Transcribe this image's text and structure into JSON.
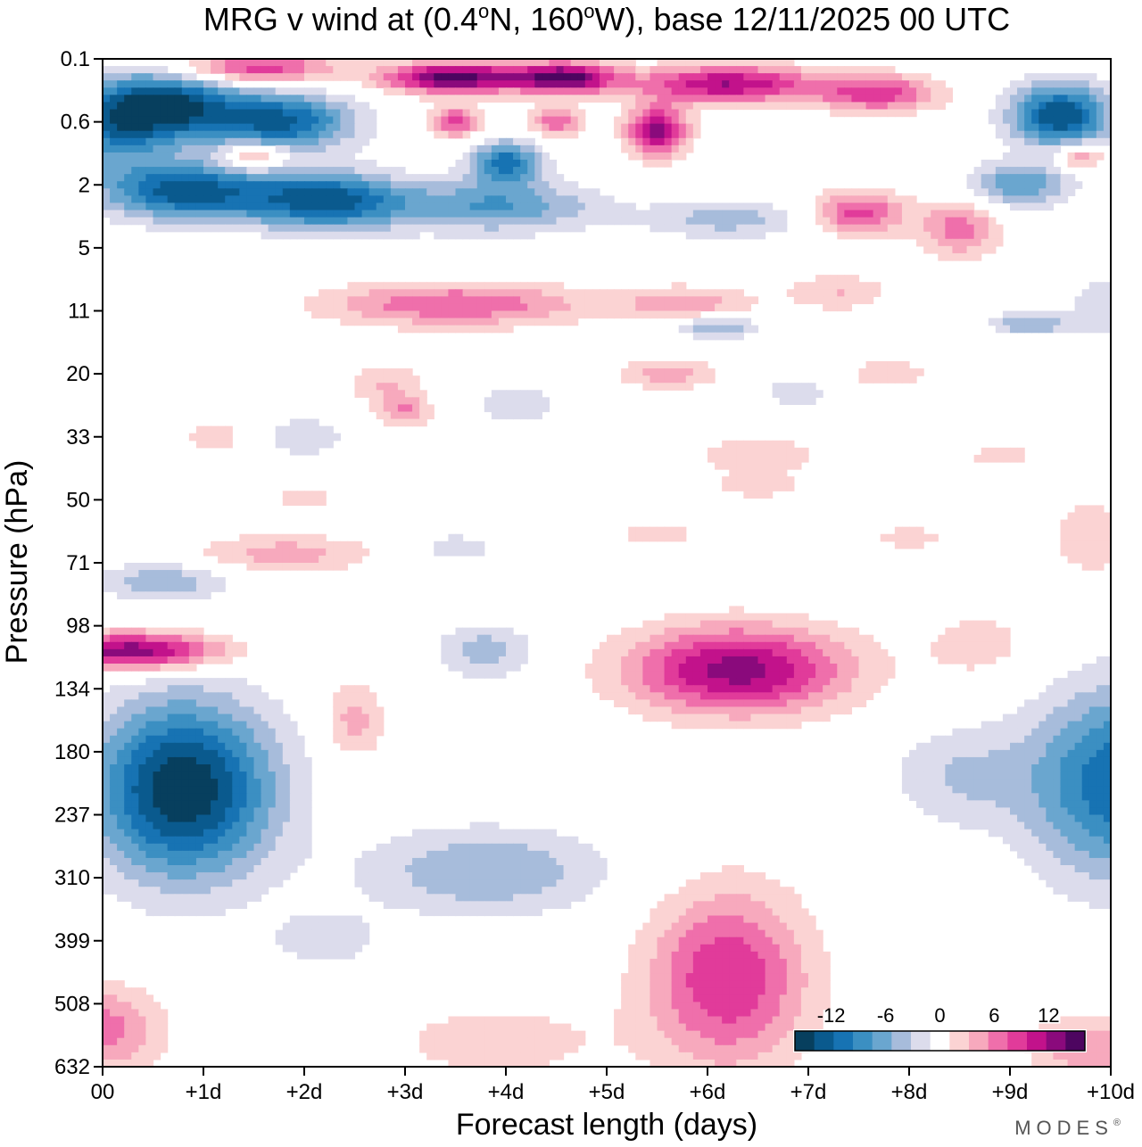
{
  "chart_data": {
    "type": "heatmap",
    "title": "MRG v wind at (0.4°N, 160°W),  base 12/11/2025  00 UTC",
    "title_parts": {
      "prefix": "MRG v wind at (0.4",
      "deg1": "o",
      "lat": "N, 160",
      "deg2": "o",
      "lon": "W),  base 12/11/2025  00 UTC"
    },
    "xlabel": "Forecast length (days)",
    "ylabel": "Pressure (hPa)",
    "xlim": [
      0,
      10
    ],
    "x_ticks": [
      {
        "v": 0,
        "label": "00"
      },
      {
        "v": 1,
        "label": "+1d"
      },
      {
        "v": 2,
        "label": "+2d"
      },
      {
        "v": 3,
        "label": "+3d"
      },
      {
        "v": 4,
        "label": "+4d"
      },
      {
        "v": 5,
        "label": "+5d"
      },
      {
        "v": 6,
        "label": "+6d"
      },
      {
        "v": 7,
        "label": "+7d"
      },
      {
        "v": 8,
        "label": "+8d"
      },
      {
        "v": 9,
        "label": "+9d"
      },
      {
        "v": 10,
        "label": "+10d"
      }
    ],
    "y_ticks": [
      "0.1",
      "0.6",
      "2",
      "5",
      "11",
      "20",
      "33",
      "50",
      "71",
      "98",
      "134",
      "180",
      "237",
      "310",
      "399",
      "508",
      "632"
    ],
    "colorbar": {
      "labels": [
        {
          "v": -12,
          "label": "-12"
        },
        {
          "v": -6,
          "label": "-6"
        },
        {
          "v": 0,
          "label": "0"
        },
        {
          "v": 6,
          "label": "6"
        },
        {
          "v": 12,
          "label": "12"
        }
      ],
      "bins": [
        {
          "lo": -16,
          "hi": -14,
          "color": "#073f5e"
        },
        {
          "lo": -14,
          "hi": -12,
          "color": "#0a5a8e"
        },
        {
          "lo": -12,
          "hi": -10,
          "color": "#1773b3"
        },
        {
          "lo": -10,
          "hi": -8,
          "color": "#3b8fc2"
        },
        {
          "lo": -8,
          "hi": -6,
          "color": "#6aa6cf"
        },
        {
          "lo": -6,
          "hi": -4,
          "color": "#a7bcdb"
        },
        {
          "lo": -4,
          "hi": -2,
          "color": "#dcdcec"
        },
        {
          "lo": -2,
          "hi": 2,
          "color": "#ffffff"
        },
        {
          "lo": 2,
          "hi": 4,
          "color": "#fbd3d3"
        },
        {
          "lo": 4,
          "hi": 6,
          "color": "#f7a9bd"
        },
        {
          "lo": 6,
          "hi": 8,
          "color": "#ef6fab"
        },
        {
          "lo": 8,
          "hi": 10,
          "color": "#e13b9a"
        },
        {
          "lo": 10,
          "hi": 12,
          "color": "#c2128b"
        },
        {
          "lo": 12,
          "hi": 14,
          "color": "#8a0a7c"
        },
        {
          "lo": 14,
          "hi": 16,
          "color": "#4d0560"
        }
      ]
    },
    "features": [
      {
        "x": 0.6,
        "y": 0.75,
        "sx": 0.75,
        "sy": 0.55,
        "v": -15
      },
      {
        "x": 1.8,
        "y": 1.0,
        "sx": 0.7,
        "sy": 0.45,
        "v": -12
      },
      {
        "x": 0.1,
        "y": 1.2,
        "sx": 0.5,
        "sy": 0.6,
        "v": -7
      },
      {
        "x": 9.5,
        "y": 0.9,
        "sx": 0.5,
        "sy": 0.5,
        "v": -14
      },
      {
        "x": 0.8,
        "y": 2.1,
        "sx": 0.8,
        "sy": 0.45,
        "v": -13
      },
      {
        "x": 2.2,
        "y": 2.25,
        "sx": 0.8,
        "sy": 0.45,
        "v": -13
      },
      {
        "x": 3.9,
        "y": 2.35,
        "sx": 1.0,
        "sy": 0.4,
        "v": -8
      },
      {
        "x": 4.0,
        "y": 1.65,
        "sx": 0.35,
        "sy": 0.35,
        "v": -11
      },
      {
        "x": 6.2,
        "y": 2.55,
        "sx": 0.8,
        "sy": 0.3,
        "v": -5
      },
      {
        "x": 9.1,
        "y": 2.0,
        "sx": 0.5,
        "sy": 0.35,
        "v": -8
      },
      {
        "x": 1.5,
        "y": 0.15,
        "sx": 0.8,
        "sy": 0.25,
        "v": 10
      },
      {
        "x": 3.5,
        "y": 0.3,
        "sx": 0.7,
        "sy": 0.25,
        "v": 15
      },
      {
        "x": 4.6,
        "y": 0.3,
        "sx": 0.5,
        "sy": 0.25,
        "v": 14
      },
      {
        "x": 6.2,
        "y": 0.4,
        "sx": 0.9,
        "sy": 0.3,
        "v": 12
      },
      {
        "x": 7.7,
        "y": 0.55,
        "sx": 0.6,
        "sy": 0.3,
        "v": 9
      },
      {
        "x": 5.5,
        "y": 1.15,
        "sx": 0.3,
        "sy": 0.4,
        "v": 13
      },
      {
        "x": 3.5,
        "y": 1.0,
        "sx": 0.25,
        "sy": 0.25,
        "v": 9
      },
      {
        "x": 4.5,
        "y": 1.0,
        "sx": 0.25,
        "sy": 0.25,
        "v": 8
      },
      {
        "x": 1.5,
        "y": 1.55,
        "sx": 0.3,
        "sy": 0.2,
        "v": 8
      },
      {
        "x": 9.7,
        "y": 1.55,
        "sx": 0.25,
        "sy": 0.2,
        "v": 7
      },
      {
        "x": 7.5,
        "y": 2.45,
        "sx": 0.45,
        "sy": 0.35,
        "v": 9
      },
      {
        "x": 8.5,
        "y": 2.7,
        "sx": 0.4,
        "sy": 0.45,
        "v": 7
      },
      {
        "x": 3.5,
        "y": 3.9,
        "sx": 1.3,
        "sy": 0.35,
        "v": 8
      },
      {
        "x": 5.8,
        "y": 3.9,
        "sx": 0.7,
        "sy": 0.3,
        "v": 5
      },
      {
        "x": 7.3,
        "y": 3.7,
        "sx": 0.5,
        "sy": 0.3,
        "v": 4
      },
      {
        "x": 6.1,
        "y": 4.25,
        "sx": 0.4,
        "sy": 0.18,
        "v": -7
      },
      {
        "x": 9.2,
        "y": 4.2,
        "sx": 0.4,
        "sy": 0.18,
        "v": -6
      },
      {
        "x": 10.0,
        "y": 3.9,
        "sx": 0.4,
        "sy": 0.5,
        "v": -4
      },
      {
        "x": 2.8,
        "y": 5.15,
        "sx": 0.4,
        "sy": 0.35,
        "v": 4
      },
      {
        "x": 3.0,
        "y": 5.6,
        "sx": 0.25,
        "sy": 0.25,
        "v": 6
      },
      {
        "x": 5.6,
        "y": 5.0,
        "sx": 0.5,
        "sy": 0.25,
        "v": 5
      },
      {
        "x": 7.8,
        "y": 5.0,
        "sx": 0.5,
        "sy": 0.3,
        "v": 3
      },
      {
        "x": 4.1,
        "y": 5.5,
        "sx": 0.4,
        "sy": 0.3,
        "v": -4
      },
      {
        "x": 6.9,
        "y": 5.3,
        "sx": 0.35,
        "sy": 0.2,
        "v": -4
      },
      {
        "x": 2.0,
        "y": 6.0,
        "sx": 0.4,
        "sy": 0.3,
        "v": -4
      },
      {
        "x": 1.1,
        "y": 6.0,
        "sx": 0.4,
        "sy": 0.25,
        "v": 3
      },
      {
        "x": 6.5,
        "y": 6.3,
        "sx": 0.6,
        "sy": 0.3,
        "v": 4
      },
      {
        "x": 8.9,
        "y": 6.3,
        "sx": 0.4,
        "sy": 0.2,
        "v": 3
      },
      {
        "x": 6.5,
        "y": 6.8,
        "sx": 0.5,
        "sy": 0.2,
        "v": 3
      },
      {
        "x": 2.0,
        "y": 7.0,
        "sx": 0.4,
        "sy": 0.2,
        "v": 3
      },
      {
        "x": 1.8,
        "y": 7.85,
        "sx": 0.9,
        "sy": 0.3,
        "v": 5
      },
      {
        "x": 3.5,
        "y": 7.75,
        "sx": 0.5,
        "sy": 0.25,
        "v": -3
      },
      {
        "x": 5.5,
        "y": 7.55,
        "sx": 0.5,
        "sy": 0.2,
        "v": 3
      },
      {
        "x": 8.0,
        "y": 7.6,
        "sx": 0.5,
        "sy": 0.2,
        "v": 3
      },
      {
        "x": 9.8,
        "y": 7.6,
        "sx": 0.4,
        "sy": 0.6,
        "v": 4
      },
      {
        "x": 0.6,
        "y": 8.3,
        "sx": 0.6,
        "sy": 0.3,
        "v": -6
      },
      {
        "x": 0.3,
        "y": 9.4,
        "sx": 0.9,
        "sy": 0.3,
        "v": 14
      },
      {
        "x": 2.5,
        "y": 10.5,
        "sx": 0.3,
        "sy": 0.6,
        "v": 5
      },
      {
        "x": 3.8,
        "y": 9.4,
        "sx": 0.5,
        "sy": 0.45,
        "v": -5
      },
      {
        "x": 6.3,
        "y": 9.7,
        "sx": 1.1,
        "sy": 0.7,
        "v": 13
      },
      {
        "x": 8.7,
        "y": 9.3,
        "sx": 0.6,
        "sy": 0.6,
        "v": 3
      },
      {
        "x": 0.8,
        "y": 11.6,
        "sx": 0.9,
        "sy": 1.4,
        "v": -16
      },
      {
        "x": 3.8,
        "y": 12.9,
        "sx": 1.2,
        "sy": 0.7,
        "v": -6
      },
      {
        "x": 6.2,
        "y": 14.6,
        "sx": 0.8,
        "sy": 1.4,
        "v": 10
      },
      {
        "x": 10.1,
        "y": 11.5,
        "sx": 0.9,
        "sy": 1.5,
        "v": -12
      },
      {
        "x": 8.5,
        "y": 11.4,
        "sx": 0.7,
        "sy": 0.8,
        "v": -4
      },
      {
        "x": 0.0,
        "y": 15.4,
        "sx": 0.6,
        "sy": 0.7,
        "v": 7
      },
      {
        "x": 2.2,
        "y": 14.0,
        "sx": 0.6,
        "sy": 0.5,
        "v": -3
      },
      {
        "x": 3.9,
        "y": 15.6,
        "sx": 1.2,
        "sy": 0.7,
        "v": 3
      },
      {
        "x": 9.8,
        "y": 15.7,
        "sx": 0.6,
        "sy": 0.5,
        "v": 6
      }
    ]
  },
  "brand": {
    "name": "MODES",
    "mark": "®"
  }
}
